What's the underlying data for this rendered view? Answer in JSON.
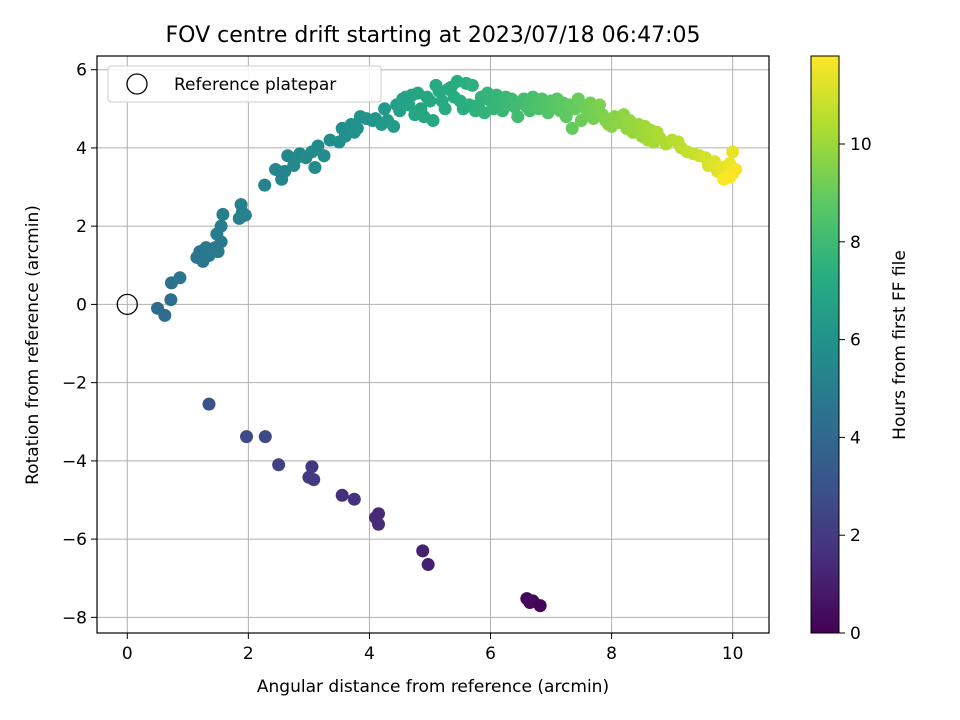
{
  "chart_data": {
    "type": "scatter",
    "title": "FOV centre drift starting at 2023/07/18 06:47:05",
    "xlabel": "Angular distance from reference (arcmin)",
    "ylabel": "Rotation from reference (arcmin)",
    "xlim": [
      -0.5,
      10.6
    ],
    "ylim": [
      -8.4,
      6.35
    ],
    "xticks": [
      0,
      2,
      4,
      6,
      8,
      10
    ],
    "yticks": [
      -8,
      -6,
      -4,
      -2,
      0,
      2,
      4,
      6
    ],
    "grid": true,
    "legend": {
      "position": "top-left",
      "entries": [
        {
          "label": "Reference platepar",
          "marker": "open-circle",
          "x": 0,
          "y": 0
        }
      ]
    },
    "colorbar": {
      "label": "Hours from first FF file",
      "colormap": "viridis",
      "range": [
        0,
        11.8
      ],
      "ticks": [
        0,
        2,
        4,
        6,
        8,
        10
      ]
    },
    "series": [
      {
        "points": [
          [
            6.6,
            -7.52,
            0.2
          ],
          [
            6.65,
            -7.62,
            0.25
          ],
          [
            6.7,
            -7.58,
            0.3
          ],
          [
            6.82,
            -7.7,
            0.15
          ],
          [
            4.88,
            -6.3,
            1.1
          ],
          [
            4.97,
            -6.65,
            1.05
          ],
          [
            4.1,
            -5.45,
            1.4
          ],
          [
            4.15,
            -5.62,
            1.45
          ],
          [
            4.15,
            -5.35,
            1.35
          ],
          [
            3.55,
            -4.88,
            1.6
          ],
          [
            3.75,
            -4.98,
            1.7
          ],
          [
            3.0,
            -4.42,
            2.0
          ],
          [
            3.08,
            -4.48,
            2.05
          ],
          [
            3.05,
            -4.15,
            1.95
          ],
          [
            2.5,
            -4.1,
            2.3
          ],
          [
            1.97,
            -3.38,
            2.6
          ],
          [
            2.28,
            -3.38,
            2.7
          ],
          [
            1.35,
            -2.55,
            3.0
          ],
          [
            0.5,
            -0.1,
            4.1
          ],
          [
            0.62,
            -0.28,
            4.2
          ],
          [
            0.72,
            0.12,
            4.3
          ],
          [
            0.73,
            0.55,
            4.4
          ],
          [
            0.87,
            0.68,
            4.5
          ],
          [
            1.15,
            1.2,
            4.6
          ],
          [
            1.2,
            1.35,
            4.6
          ],
          [
            1.25,
            1.1,
            4.65
          ],
          [
            1.3,
            1.45,
            4.7
          ],
          [
            1.35,
            1.25,
            4.7
          ],
          [
            1.45,
            1.45,
            4.75
          ],
          [
            1.5,
            1.35,
            4.8
          ],
          [
            1.55,
            1.6,
            4.85
          ],
          [
            1.48,
            1.8,
            4.9
          ],
          [
            1.55,
            2.0,
            4.95
          ],
          [
            1.58,
            2.3,
            5.0
          ],
          [
            1.85,
            2.2,
            5.0
          ],
          [
            1.9,
            2.35,
            5.05
          ],
          [
            1.88,
            2.55,
            5.1
          ],
          [
            1.95,
            2.28,
            5.1
          ],
          [
            2.27,
            3.05,
            5.2
          ],
          [
            2.45,
            3.45,
            5.3
          ],
          [
            2.55,
            3.2,
            5.35
          ],
          [
            2.6,
            3.4,
            5.35
          ],
          [
            2.65,
            3.8,
            5.4
          ],
          [
            2.75,
            3.55,
            5.45
          ],
          [
            2.85,
            3.85,
            5.45
          ],
          [
            2.8,
            3.75,
            5.5
          ],
          [
            2.95,
            3.75,
            5.55
          ],
          [
            3.05,
            3.9,
            5.55
          ],
          [
            3.1,
            3.5,
            5.6
          ],
          [
            3.15,
            4.05,
            5.6
          ],
          [
            3.25,
            3.8,
            5.65
          ],
          [
            3.35,
            4.2,
            5.7
          ],
          [
            3.5,
            4.15,
            5.75
          ],
          [
            3.55,
            4.5,
            5.8
          ],
          [
            3.6,
            4.3,
            5.85
          ],
          [
            3.7,
            4.6,
            5.9
          ],
          [
            3.75,
            4.4,
            5.9
          ],
          [
            3.8,
            4.5,
            5.95
          ],
          [
            3.85,
            4.8,
            6.0
          ],
          [
            3.95,
            4.75,
            6.05
          ],
          [
            4.05,
            4.7,
            6.1
          ],
          [
            4.1,
            4.75,
            6.15
          ],
          [
            4.2,
            4.6,
            6.2
          ],
          [
            4.25,
            5.0,
            6.3
          ],
          [
            4.3,
            4.7,
            6.35
          ],
          [
            4.4,
            4.55,
            6.4
          ],
          [
            4.45,
            5.1,
            6.6
          ],
          [
            4.5,
            4.95,
            6.65
          ],
          [
            4.55,
            5.25,
            6.7
          ],
          [
            4.6,
            5.3,
            6.75
          ],
          [
            4.65,
            5.1,
            6.8
          ],
          [
            4.7,
            5.35,
            6.8
          ],
          [
            4.75,
            4.85,
            6.85
          ],
          [
            4.8,
            5.4,
            6.9
          ],
          [
            4.85,
            5.0,
            6.9
          ],
          [
            4.9,
            4.8,
            6.95
          ],
          [
            4.95,
            5.3,
            7.0
          ],
          [
            5.0,
            5.2,
            7.0
          ],
          [
            5.05,
            4.7,
            7.05
          ],
          [
            5.1,
            5.6,
            7.1
          ],
          [
            5.15,
            5.45,
            7.1
          ],
          [
            5.2,
            5.2,
            7.15
          ],
          [
            5.25,
            5.0,
            7.2
          ],
          [
            5.3,
            5.5,
            7.2
          ],
          [
            5.35,
            5.55,
            7.25
          ],
          [
            5.4,
            5.3,
            7.3
          ],
          [
            5.45,
            5.7,
            7.3
          ],
          [
            5.5,
            5.2,
            7.35
          ],
          [
            5.55,
            5.0,
            7.4
          ],
          [
            5.6,
            5.65,
            7.4
          ],
          [
            5.65,
            5.1,
            7.45
          ],
          [
            5.7,
            5.6,
            7.5
          ],
          [
            5.75,
            4.95,
            7.55
          ],
          [
            5.8,
            5.1,
            7.55
          ],
          [
            5.85,
            5.3,
            7.6
          ],
          [
            5.9,
            4.9,
            7.65
          ],
          [
            5.95,
            5.4,
            7.7
          ],
          [
            6.0,
            5.2,
            7.7
          ],
          [
            6.05,
            5.0,
            7.75
          ],
          [
            6.1,
            5.35,
            7.8
          ],
          [
            6.15,
            5.15,
            7.85
          ],
          [
            6.2,
            4.95,
            7.85
          ],
          [
            6.25,
            5.3,
            7.9
          ],
          [
            6.3,
            5.1,
            7.95
          ],
          [
            6.35,
            5.25,
            8.0
          ],
          [
            6.4,
            5.05,
            8.05
          ],
          [
            6.45,
            4.8,
            8.1
          ],
          [
            6.5,
            5.15,
            8.1
          ],
          [
            6.55,
            5.25,
            8.15
          ],
          [
            6.6,
            5.05,
            8.2
          ],
          [
            6.65,
            4.95,
            8.25
          ],
          [
            6.7,
            5.3,
            8.3
          ],
          [
            6.75,
            5.1,
            8.35
          ],
          [
            6.8,
            5.0,
            8.4
          ],
          [
            6.85,
            5.25,
            8.45
          ],
          [
            6.9,
            5.15,
            8.5
          ],
          [
            6.95,
            4.9,
            8.55
          ],
          [
            7.0,
            5.2,
            8.6
          ],
          [
            7.05,
            5.05,
            8.65
          ],
          [
            7.1,
            5.25,
            8.7
          ],
          [
            7.15,
            4.95,
            8.75
          ],
          [
            7.2,
            5.15,
            8.8
          ],
          [
            7.25,
            4.8,
            8.85
          ],
          [
            7.3,
            5.1,
            8.9
          ],
          [
            7.35,
            4.5,
            8.95
          ],
          [
            7.4,
            5.0,
            9.0
          ],
          [
            7.45,
            5.25,
            9.05
          ],
          [
            7.5,
            4.7,
            9.1
          ],
          [
            7.55,
            5.05,
            9.15
          ],
          [
            7.6,
            4.9,
            9.2
          ],
          [
            7.65,
            5.15,
            9.25
          ],
          [
            7.7,
            4.75,
            9.3
          ],
          [
            7.75,
            5.0,
            9.35
          ],
          [
            7.8,
            5.1,
            9.4
          ],
          [
            7.85,
            4.85,
            9.45
          ],
          [
            7.9,
            4.7,
            9.5
          ],
          [
            7.95,
            4.6,
            9.55
          ],
          [
            8.0,
            4.55,
            9.6
          ],
          [
            8.05,
            4.8,
            9.65
          ],
          [
            8.1,
            4.65,
            9.7
          ],
          [
            8.2,
            4.85,
            9.75
          ],
          [
            8.25,
            4.5,
            9.8
          ],
          [
            8.3,
            4.7,
            9.85
          ],
          [
            8.35,
            4.4,
            9.9
          ],
          [
            8.45,
            4.6,
            9.95
          ],
          [
            8.5,
            4.3,
            10.0
          ],
          [
            8.55,
            4.55,
            10.05
          ],
          [
            8.6,
            4.2,
            10.1
          ],
          [
            8.65,
            4.45,
            10.15
          ],
          [
            8.7,
            4.15,
            10.2
          ],
          [
            8.75,
            4.4,
            10.25
          ],
          [
            8.8,
            4.25,
            10.3
          ],
          [
            8.9,
            4.1,
            10.35
          ],
          [
            9.0,
            4.2,
            10.45
          ],
          [
            9.1,
            4.15,
            10.55
          ],
          [
            9.15,
            4.0,
            10.6
          ],
          [
            9.25,
            3.9,
            10.7
          ],
          [
            9.35,
            3.85,
            10.8
          ],
          [
            9.45,
            3.8,
            10.9
          ],
          [
            9.55,
            3.75,
            11.0
          ],
          [
            9.6,
            3.55,
            11.1
          ],
          [
            9.7,
            3.65,
            11.2
          ],
          [
            9.75,
            3.4,
            11.3
          ],
          [
            9.8,
            3.5,
            11.4
          ],
          [
            9.9,
            3.3,
            11.5
          ],
          [
            9.95,
            3.6,
            11.5
          ],
          [
            10.0,
            3.35,
            11.6
          ],
          [
            10.05,
            3.45,
            11.7
          ],
          [
            9.85,
            3.2,
            11.75
          ],
          [
            10.0,
            3.9,
            11.4
          ],
          [
            9.95,
            3.25,
            11.8
          ]
        ]
      }
    ]
  }
}
